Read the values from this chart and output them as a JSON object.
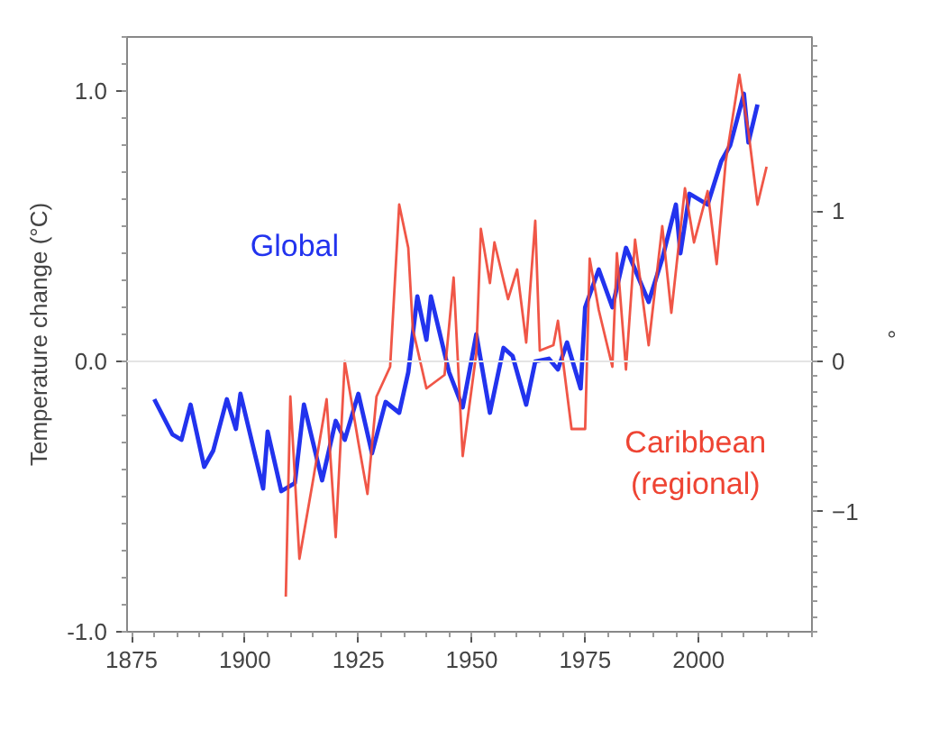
{
  "chart_data": {
    "type": "line",
    "ylabel": "Temperature change (°C)",
    "y2label": "°",
    "xlim": [
      1874,
      2025
    ],
    "xticks": [
      1875,
      1900,
      1925,
      1950,
      1975,
      2000
    ],
    "ylim": [
      -1.0,
      1.2
    ],
    "yticks": [
      {
        "value": -1,
        "label": "-1.0"
      },
      {
        "value": 0,
        "label": "0.0"
      },
      {
        "value": 1,
        "label": "1.0"
      }
    ],
    "y2lim": [
      -1.8,
      2.16
    ],
    "y2ticks": [
      -1,
      0,
      1
    ],
    "ref_lines": [
      {
        "axis": "y",
        "value": 0,
        "color": "#e4e4e4"
      }
    ],
    "grid": false,
    "marker": "none",
    "line_style": "solid",
    "series": [
      {
        "name": "Global",
        "color": "#2233ee",
        "x": [
          1880,
          1884,
          1886,
          1888,
          1891,
          1893,
          1896,
          1898,
          1899,
          1901,
          1904,
          1905,
          1908,
          1911,
          1913,
          1917,
          1920,
          1922,
          1925,
          1928,
          1931,
          1934,
          1936,
          1938,
          1940,
          1941,
          1945,
          1948,
          1951,
          1954,
          1957,
          1959,
          1962,
          1964,
          1967,
          1969,
          1971,
          1974,
          1975,
          1978,
          1981,
          1984,
          1987,
          1989,
          1992,
          1995,
          1996,
          1998,
          2002,
          2005,
          2007,
          2010,
          2011,
          2013
        ],
        "values": [
          -0.14,
          -0.27,
          -0.29,
          -0.16,
          -0.39,
          -0.33,
          -0.14,
          -0.25,
          -0.12,
          -0.26,
          -0.47,
          -0.26,
          -0.48,
          -0.45,
          -0.16,
          -0.44,
          -0.22,
          -0.29,
          -0.12,
          -0.34,
          -0.15,
          -0.19,
          -0.04,
          0.24,
          0.08,
          0.24,
          -0.04,
          -0.17,
          0.1,
          -0.19,
          0.05,
          0.02,
          -0.16,
          0.0,
          0.01,
          -0.03,
          0.07,
          -0.1,
          0.2,
          0.34,
          0.2,
          0.42,
          0.3,
          0.22,
          0.38,
          0.58,
          0.4,
          0.62,
          0.58,
          0.74,
          0.8,
          0.99,
          0.81,
          0.95
        ]
      },
      {
        "name": "Caribbean (regional)",
        "color": "#ee4433",
        "x": [
          1909,
          1910,
          1912,
          1915,
          1918,
          1920,
          1922,
          1925,
          1927,
          1929,
          1932,
          1934,
          1936,
          1937,
          1940,
          1944,
          1946,
          1948,
          1951,
          1952,
          1954,
          1955,
          1958,
          1960,
          1962,
          1964,
          1965,
          1968,
          1969,
          1972,
          1975,
          1976,
          1978,
          1981,
          1982,
          1984,
          1986,
          1989,
          1992,
          1994,
          1997,
          1999,
          2002,
          2004,
          2006,
          2009,
          2011,
          2013,
          2015
        ],
        "values": [
          -0.87,
          -0.13,
          -0.73,
          -0.44,
          -0.14,
          -0.65,
          0.0,
          -0.3,
          -0.49,
          -0.13,
          -0.02,
          0.58,
          0.42,
          0.12,
          -0.1,
          -0.05,
          0.31,
          -0.35,
          0.03,
          0.49,
          0.29,
          0.44,
          0.23,
          0.34,
          0.07,
          0.52,
          0.04,
          0.06,
          0.15,
          -0.25,
          -0.25,
          0.38,
          0.19,
          -0.02,
          0.4,
          -0.03,
          0.45,
          0.06,
          0.5,
          0.18,
          0.64,
          0.44,
          0.63,
          0.36,
          0.74,
          1.06,
          0.85,
          0.58,
          0.72
        ]
      }
    ]
  }
}
